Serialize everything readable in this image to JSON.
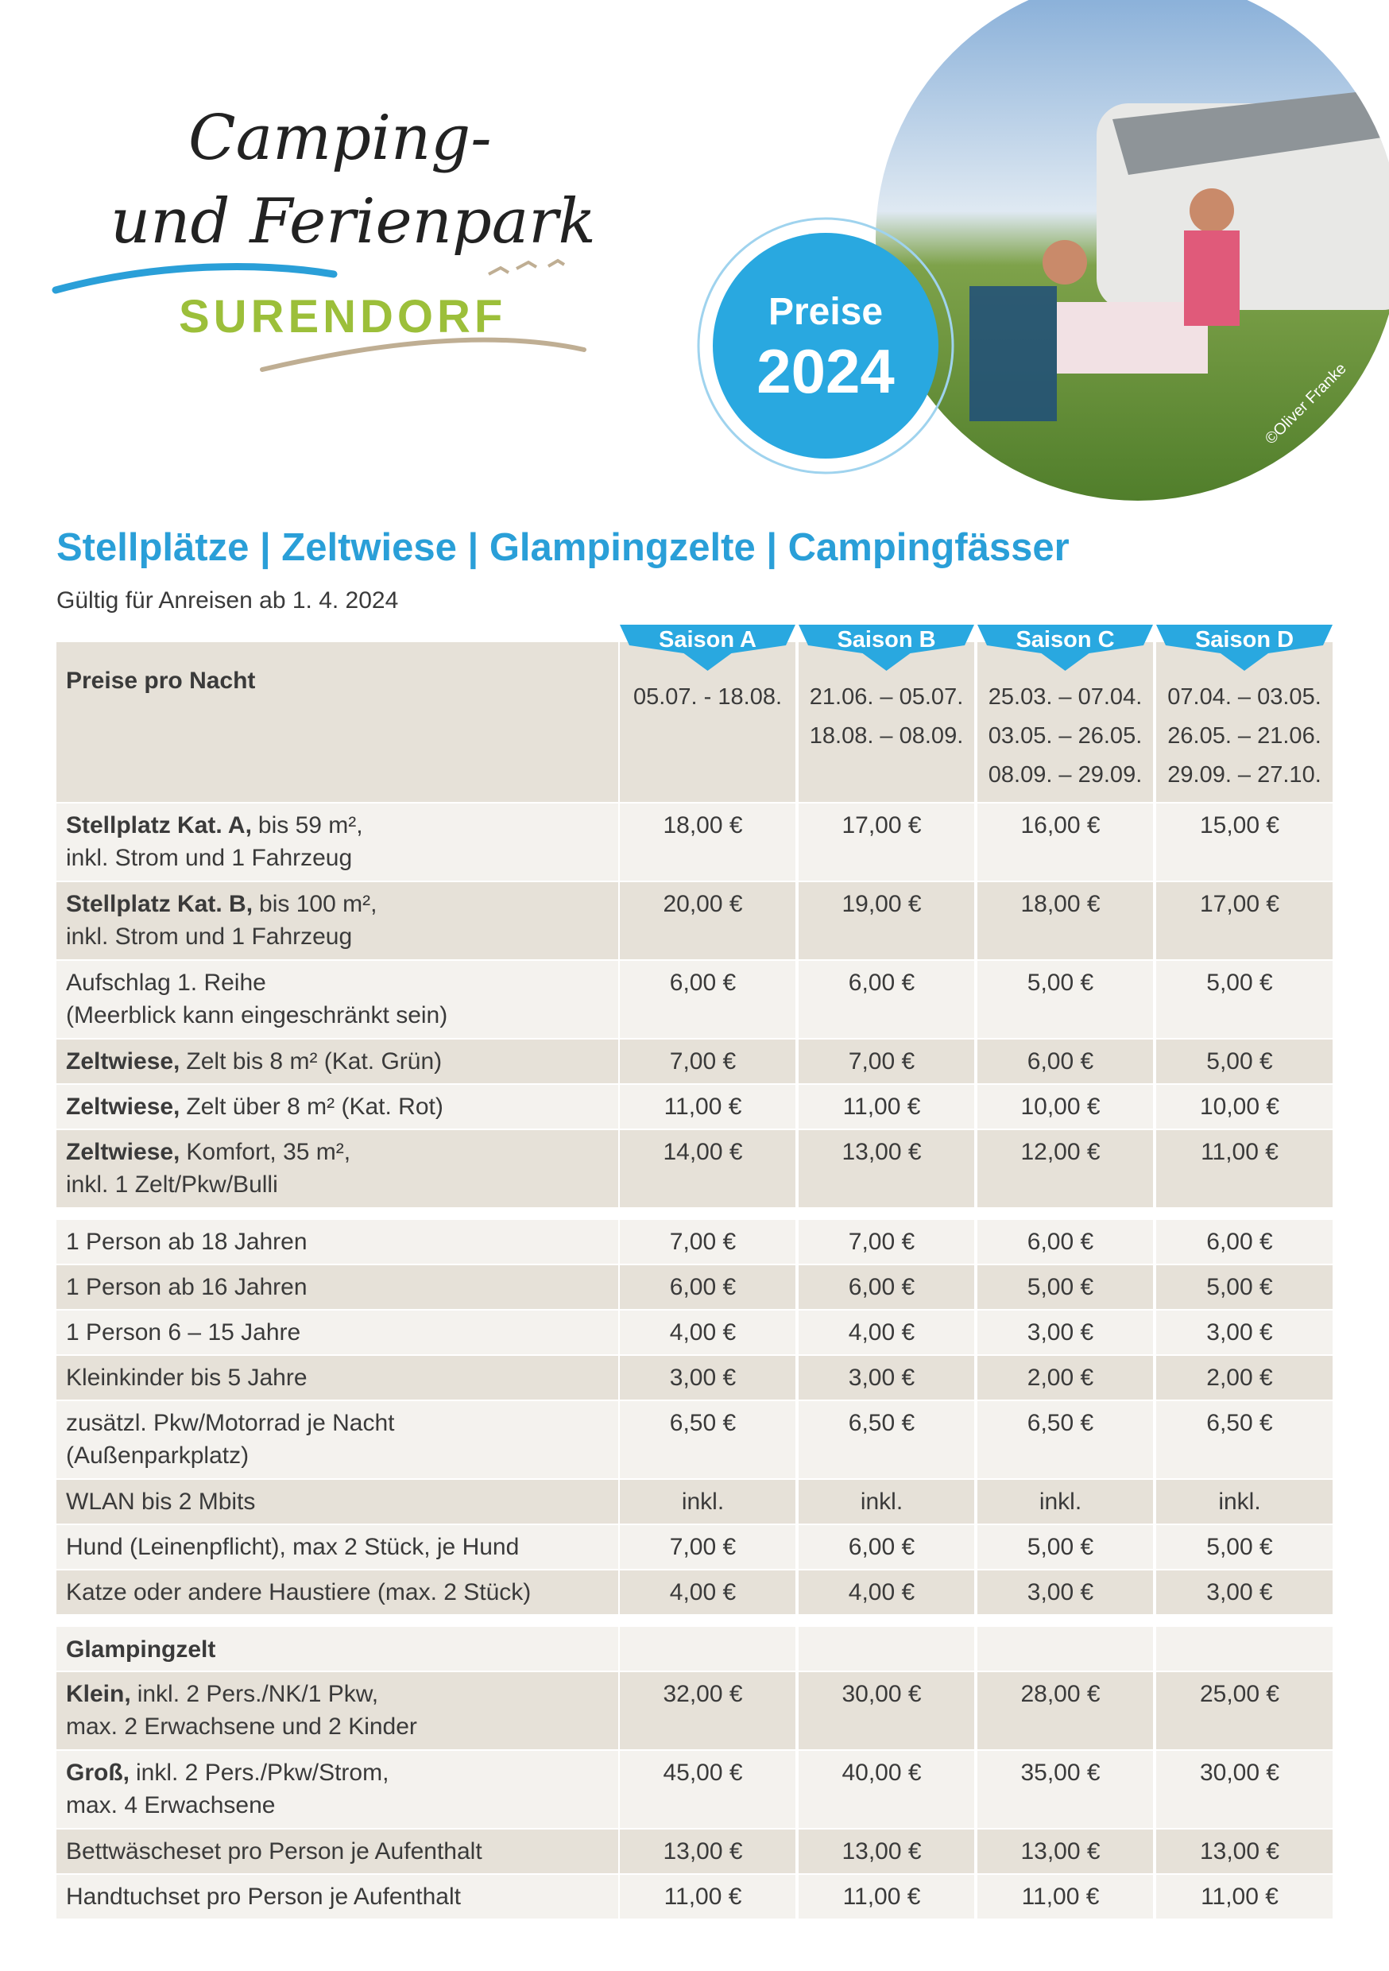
{
  "header": {
    "logo": {
      "line1": "Camping-",
      "line2": "und Ferienpark",
      "line3": "SURENDORF"
    },
    "badge": {
      "label": "Preise",
      "year": "2024"
    },
    "photo_credit": "©Oliver Franke"
  },
  "title": "Stellplätze | Zeltwiese | Glampingzelte | Campingfässer",
  "subtitle": "Gültig für Anreisen ab 1. 4. 2024",
  "table": {
    "corner": "Preise pro Nacht",
    "seasons": [
      {
        "name": "Saison A",
        "dates": [
          "05.07. - 18.08."
        ]
      },
      {
        "name": "Saison B",
        "dates": [
          "21.06. – 05.07.",
          "18.08. – 08.09."
        ]
      },
      {
        "name": "Saison C",
        "dates": [
          "25.03. – 07.04.",
          "03.05. – 26.05.",
          "08.09. – 29.09."
        ]
      },
      {
        "name": "Saison D",
        "dates": [
          "07.04. – 03.05.",
          "26.05. – 21.06.",
          "29.09. – 27.10."
        ]
      }
    ],
    "groups": [
      {
        "rows": [
          {
            "bold": "Stellplatz Kat. A,",
            "lines": [
              "bis 59 m²,",
              "inkl. Strom und 1 Fahrzeug"
            ],
            "prices": [
              "18,00 €",
              "17,00 €",
              "16,00 €",
              "15,00 €"
            ]
          },
          {
            "bold": "Stellplatz Kat. B,",
            "lines": [
              "bis 100 m²,",
              "inkl. Strom und 1 Fahrzeug"
            ],
            "prices": [
              "20,00 €",
              "19,00 €",
              "18,00 €",
              "17,00 €"
            ]
          },
          {
            "lines": [
              "Aufschlag 1. Reihe",
              "(Meerblick kann eingeschränkt sein)"
            ],
            "prices": [
              "6,00 €",
              "6,00 €",
              "5,00 €",
              "5,00 €"
            ]
          },
          {
            "bold": "Zeltwiese,",
            "lines": [
              "Zelt bis 8 m² (Kat. Grün)"
            ],
            "prices": [
              "7,00 €",
              "7,00 €",
              "6,00 €",
              "5,00 €"
            ]
          },
          {
            "bold": "Zeltwiese,",
            "lines": [
              "Zelt über 8 m² (Kat. Rot)"
            ],
            "prices": [
              "11,00 €",
              "11,00 €",
              "10,00 €",
              "10,00 €"
            ]
          },
          {
            "bold": "Zeltwiese,",
            "lines": [
              "Komfort, 35 m²,",
              "inkl. 1 Zelt/Pkw/Bulli"
            ],
            "prices": [
              "14,00 €",
              "13,00 €",
              "12,00 €",
              "11,00 €"
            ]
          }
        ]
      },
      {
        "rows": [
          {
            "lines": [
              "1 Person ab 18 Jahren"
            ],
            "prices": [
              "7,00 €",
              "7,00 €",
              "6,00 €",
              "6,00 €"
            ]
          },
          {
            "lines": [
              "1 Person ab 16 Jahren"
            ],
            "prices": [
              "6,00 €",
              "6,00 €",
              "5,00 €",
              "5,00 €"
            ]
          },
          {
            "lines": [
              "1 Person 6 – 15 Jahre"
            ],
            "prices": [
              "4,00 €",
              "4,00 €",
              "3,00 €",
              "3,00 €"
            ]
          },
          {
            "lines": [
              "Kleinkinder bis 5 Jahre"
            ],
            "prices": [
              "3,00 €",
              "3,00 €",
              "2,00 €",
              "2,00 €"
            ]
          },
          {
            "lines": [
              "zusätzl. Pkw/Motorrad je Nacht",
              "(Außenparkplatz)"
            ],
            "prices": [
              "6,50 €",
              "6,50 €",
              "6,50 €",
              "6,50 €"
            ]
          },
          {
            "lines": [
              "WLAN bis 2 Mbits"
            ],
            "prices": [
              "inkl.",
              "inkl.",
              "inkl.",
              "inkl."
            ]
          },
          {
            "lines": [
              "Hund (Leinenpflicht), max 2 Stück, je Hund"
            ],
            "prices": [
              "7,00 €",
              "6,00 €",
              "5,00 €",
              "5,00 €"
            ]
          },
          {
            "lines": [
              "Katze oder andere Haustiere (max. 2 Stück)"
            ],
            "prices": [
              "4,00 €",
              "4,00 €",
              "3,00 €",
              "3,00 €"
            ]
          }
        ]
      },
      {
        "heading": "Glampingzelt",
        "rows": [
          {
            "bold": "Klein,",
            "lines": [
              "inkl. 2 Pers./NK/1 Pkw,",
              "max. 2 Erwachsene und 2 Kinder"
            ],
            "prices": [
              "32,00 €",
              "30,00 €",
              "28,00 €",
              "25,00 €"
            ]
          },
          {
            "bold": "Groß,",
            "lines": [
              "inkl. 2 Pers./Pkw/Strom,",
              "max. 4 Erwachsene"
            ],
            "prices": [
              "45,00 €",
              "40,00 €",
              "35,00 €",
              "30,00 €"
            ]
          },
          {
            "lines": [
              "Bettwäscheset pro Person je Aufenthalt"
            ],
            "prices": [
              "13,00 €",
              "13,00 €",
              "13,00 €",
              "13,00 €"
            ]
          },
          {
            "lines": [
              "Handtuchset pro Person je Aufenthalt"
            ],
            "prices": [
              "11,00 €",
              "11,00 €",
              "11,00 €",
              "11,00 €"
            ]
          }
        ]
      }
    ]
  }
}
